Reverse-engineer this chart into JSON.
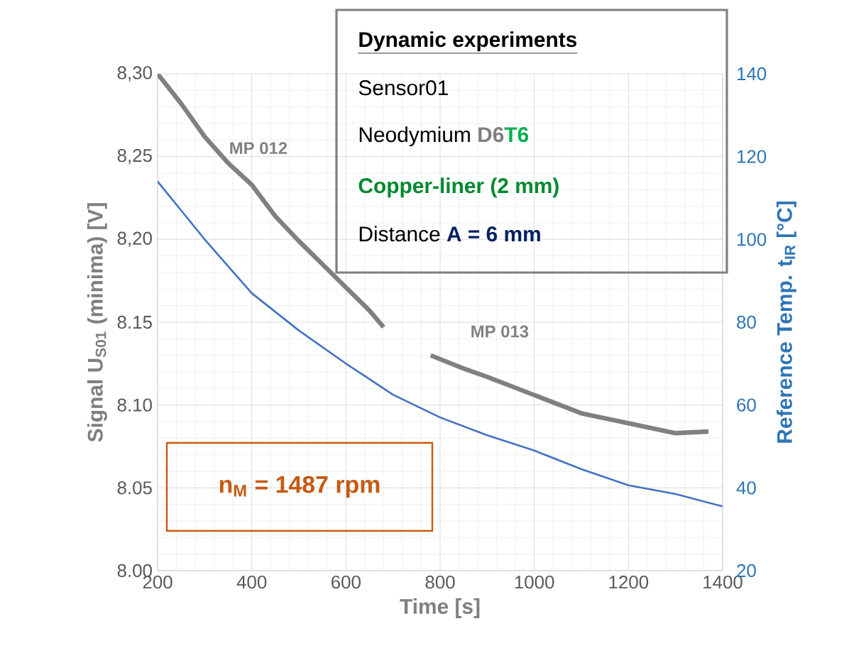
{
  "chart_data": {
    "type": "line",
    "xlabel": "Time [s]",
    "ylabel": "Signal U$_{S01}$ (minima) [V]",
    "y2label": "Reference Temp. t$_{IR}$ [°C]",
    "xlim": [
      200,
      1400
    ],
    "xticks": [
      200,
      400,
      600,
      800,
      1000,
      1200,
      1400
    ],
    "ylim": [
      8.0,
      8.3
    ],
    "yticks": [
      {
        "value": 8.0,
        "label": "8.00"
      },
      {
        "value": 8.05,
        "label": "8.05"
      },
      {
        "value": 8.1,
        "label": "8.10"
      },
      {
        "value": 8.15,
        "label": "8.15"
      },
      {
        "value": 8.2,
        "label": "8,20"
      },
      {
        "value": 8.25,
        "label": "8,25"
      },
      {
        "value": 8.3,
        "label": "8,30"
      }
    ],
    "y2lim": [
      20,
      140
    ],
    "y2ticks": [
      20,
      40,
      60,
      80,
      100,
      120,
      140
    ],
    "grid": true,
    "marker": "none",
    "series": [
      {
        "name": "MP 012",
        "color": "#808080",
        "x": [
          200,
          250,
          300,
          350,
          400,
          450,
          500,
          550,
          600,
          650,
          680
        ],
        "values": [
          8.3,
          8.282,
          8.262,
          8.246,
          8.233,
          8.214,
          8.199,
          8.185,
          8.171,
          8.157,
          8.147
        ]
      },
      {
        "name": "MP 013",
        "color": "#808080",
        "x": [
          780,
          850,
          900,
          1000,
          1100,
          1200,
          1300,
          1370
        ],
        "values": [
          8.13,
          8.122,
          8.117,
          8.106,
          8.095,
          8.089,
          8.083,
          8.084
        ]
      },
      {
        "color": "#4472c4",
        "axis": "y2",
        "x": [
          200,
          300,
          400,
          500,
          600,
          700,
          800,
          900,
          1000,
          1100,
          1200,
          1300,
          1400
        ],
        "values": [
          114,
          100,
          87,
          78,
          70,
          62.5,
          57,
          52.7,
          49,
          44.5,
          40.6,
          38.5,
          35.5
        ]
      }
    ],
    "annotations": [
      "Dynamic experiments",
      "Sensor01",
      "Neodymium",
      "D6",
      "T6",
      "Copper-liner (2 mm)",
      "Distance",
      "A = 6 mm",
      "n$_{M}$ = 1487 rpm"
    ]
  }
}
